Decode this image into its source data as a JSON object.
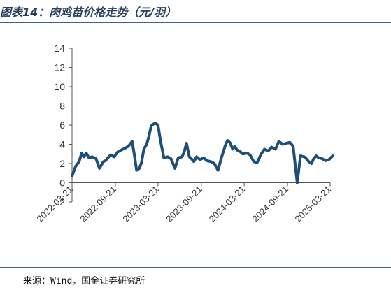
{
  "header": {
    "title": "图表14：肉鸡苗价格走势（元/羽）"
  },
  "footer": {
    "source": "来源：Wind，国金证券研究所"
  },
  "chart_data": {
    "type": "line",
    "title": "",
    "xlabel": "",
    "ylabel": "",
    "ylim": [
      -2,
      14
    ],
    "yticks": [
      -2,
      0,
      2,
      4,
      6,
      8,
      10,
      12,
      14
    ],
    "xticks": [
      "2022-03-21",
      "2022-09-21",
      "2023-03-21",
      "2023-09-21",
      "2024-03-21",
      "2024-09-21",
      "2025-03-21"
    ],
    "grid": false,
    "legend": "none",
    "line_color": "#1f4e79",
    "series": [
      {
        "x": [
          "2022-03-21",
          "2022-04-05",
          "2022-04-20",
          "2022-05-01",
          "2022-05-10",
          "2022-05-20",
          "2022-06-01",
          "2022-06-15",
          "2022-07-01",
          "2022-07-15",
          "2022-08-01",
          "2022-08-10",
          "2022-08-20",
          "2022-09-01",
          "2022-09-15",
          "2022-10-01",
          "2022-10-15",
          "2022-11-01",
          "2022-11-15",
          "2022-12-01",
          "2022-12-10",
          "2022-12-20",
          "2023-01-01",
          "2023-01-10",
          "2023-01-20",
          "2023-02-01",
          "2023-02-10",
          "2023-02-20",
          "2023-03-01",
          "2023-03-10",
          "2023-03-21",
          "2023-04-01",
          "2023-04-15",
          "2023-05-01",
          "2023-05-15",
          "2023-06-01",
          "2023-06-15",
          "2023-07-01",
          "2023-07-10",
          "2023-07-20",
          "2023-08-01",
          "2023-08-10",
          "2023-08-20",
          "2023-09-01",
          "2023-09-15",
          "2023-10-01",
          "2023-10-15",
          "2023-11-01",
          "2023-11-15",
          "2023-12-01",
          "2023-12-15",
          "2024-01-01",
          "2024-01-10",
          "2024-01-20",
          "2024-02-01",
          "2024-02-10",
          "2024-02-20",
          "2024-03-01",
          "2024-03-15",
          "2024-04-01",
          "2024-04-15",
          "2024-05-01",
          "2024-05-15",
          "2024-06-01",
          "2024-06-15",
          "2024-07-01",
          "2024-07-15",
          "2024-08-01",
          "2024-08-15",
          "2024-09-01",
          "2024-09-15",
          "2024-10-01",
          "2024-10-15",
          "2024-11-01",
          "2024-11-15",
          "2024-12-01",
          "2024-12-10",
          "2024-12-20",
          "2025-01-01",
          "2025-01-10",
          "2025-01-20",
          "2025-02-01",
          "2025-02-15",
          "2025-03-01",
          "2025-03-15",
          "2025-04-01"
        ],
        "y": [
          0.7,
          1.7,
          2.2,
          3.1,
          2.7,
          3.1,
          2.6,
          2.7,
          2.5,
          1.5,
          2.2,
          2.3,
          2.6,
          2.9,
          2.7,
          3.2,
          3.4,
          3.6,
          3.8,
          4.3,
          3.0,
          1.3,
          1.5,
          2.1,
          3.5,
          4.0,
          4.8,
          5.9,
          6.1,
          6.2,
          6.0,
          4.3,
          2.6,
          2.7,
          2.5,
          1.5,
          2.6,
          2.7,
          3.2,
          4.1,
          2.7,
          2.5,
          2.2,
          2.7,
          2.4,
          2.6,
          2.3,
          2.2,
          2.0,
          1.3,
          2.6,
          3.9,
          4.4,
          4.2,
          3.5,
          3.8,
          3.4,
          3.3,
          3.0,
          3.1,
          2.9,
          2.2,
          2.1,
          3.0,
          3.5,
          3.3,
          3.7,
          3.5,
          4.3,
          4.0,
          4.1,
          4.2,
          3.8,
          0.0,
          2.8,
          2.7,
          2.5,
          2.2,
          2.0,
          2.5,
          2.8,
          2.6,
          2.5,
          2.3,
          2.4,
          2.8
        ]
      }
    ]
  }
}
